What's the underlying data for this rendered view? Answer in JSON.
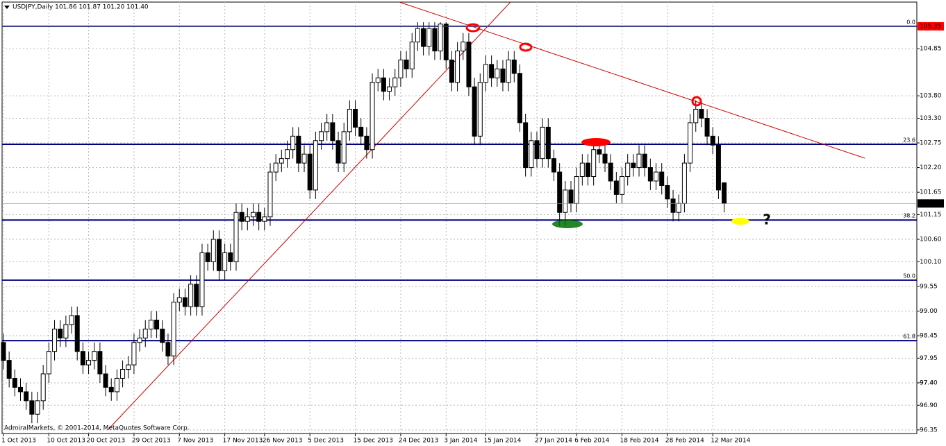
{
  "chart_data": {
    "type": "candlestick",
    "title": "USDJPY,Daily  101.86 101.87 101.20 101.40",
    "footer": "AdmiralMarkets, © 2001-2014, MetaQuotes Software Corp.",
    "annotations": [
      "?"
    ],
    "categories": [
      "1 Oct 2013",
      null,
      null,
      null,
      null,
      null,
      null,
      null,
      "10 Oct 2013",
      null,
      null,
      null,
      null,
      null,
      null,
      "20 Oct 2013",
      null,
      null,
      null,
      null,
      null,
      null,
      null,
      "29 Oct 2013",
      null,
      null,
      null,
      null,
      null,
      null,
      null,
      "7 Nov 2013",
      null,
      null,
      null,
      null,
      null,
      null,
      null,
      "17 Nov 2013",
      null,
      null,
      null,
      null,
      null,
      null,
      "26 Nov 2013",
      null,
      null,
      null,
      null,
      null,
      null,
      null,
      "5 Dec 2013",
      null,
      null,
      null,
      null,
      null,
      null,
      null,
      "15 Dec 2013",
      null,
      null,
      null,
      null,
      null,
      null,
      null,
      "24 Dec 2013",
      null,
      null,
      null,
      null,
      null,
      null,
      null,
      "3 Jan 2014",
      null,
      null,
      null,
      null,
      null,
      null,
      "15 Jan 2014",
      null,
      null,
      null,
      null,
      null,
      null,
      null,
      null,
      "27 Jan 2014",
      null,
      null,
      null,
      null,
      null,
      null,
      "6 Feb 2014",
      null,
      null,
      null,
      null,
      null,
      null,
      null,
      "18 Feb 2014",
      null,
      null,
      null,
      null,
      null,
      null,
      null,
      "28 Feb 2014",
      null,
      null,
      null,
      null,
      null,
      null,
      null,
      "12 Mar 2014",
      null,
      null
    ],
    "open": [
      98.3,
      97.9,
      97.5,
      97.3,
      97.2,
      97.0,
      96.7,
      97.0,
      97.6,
      98.1,
      98.6,
      98.4,
      98.7,
      98.9,
      98.1,
      97.8,
      97.9,
      98.1,
      97.6,
      97.3,
      97.2,
      97.5,
      97.7,
      97.8,
      98.3,
      98.4,
      98.6,
      98.8,
      98.6,
      98.3,
      98.0,
      99.2,
      99.3,
      99.1,
      99.6,
      99.1,
      100.3,
      100.1,
      100.6,
      99.9,
      100.3,
      100.1,
      101.2,
      101.0,
      101.1,
      101.2,
      101.0,
      101.1,
      102.1,
      102.3,
      102.4,
      102.6,
      102.9,
      102.3,
      102.5,
      101.7,
      102.8,
      103.0,
      103.2,
      102.8,
      102.3,
      103.0,
      103.5,
      103.1,
      102.9,
      102.6,
      104.1,
      104.2,
      103.9,
      104.0,
      104.2,
      104.6,
      104.4,
      105.0,
      105.3,
      104.9,
      105.3,
      104.8,
      105.4,
      104.6,
      104.1,
      104.8,
      105.0,
      104.0,
      102.9,
      104.1,
      104.5,
      104.2,
      104.4,
      104.1,
      104.6,
      104.3,
      103.2,
      102.2,
      102.8,
      102.4,
      103.1,
      102.4,
      102.1,
      101.2,
      101.7,
      101.4,
      102.0,
      102.3,
      102.0,
      102.6,
      102.5,
      102.3,
      101.9,
      101.6,
      102.0,
      102.3,
      102.2,
      102.5,
      102.2,
      101.9,
      102.1,
      101.8,
      101.5,
      101.2,
      101.4,
      102.3,
      103.2,
      103.5,
      103.3,
      102.9,
      102.7,
      101.86
    ],
    "high": [
      98.5,
      98.1,
      97.7,
      97.5,
      97.4,
      97.2,
      97.2,
      97.8,
      98.3,
      98.8,
      98.8,
      98.9,
      99.1,
      99.1,
      98.3,
      98.1,
      98.3,
      98.3,
      97.8,
      97.5,
      97.7,
      97.9,
      98.0,
      98.5,
      98.6,
      98.8,
      99.0,
      99.0,
      98.8,
      98.5,
      99.4,
      99.5,
      99.5,
      99.8,
      99.8,
      100.5,
      100.5,
      100.8,
      100.8,
      100.5,
      100.5,
      101.4,
      101.4,
      101.3,
      101.4,
      101.4,
      101.3,
      102.3,
      102.5,
      102.6,
      102.8,
      103.1,
      103.1,
      102.7,
      102.7,
      103.0,
      103.2,
      103.4,
      103.4,
      103.0,
      103.2,
      103.7,
      103.7,
      103.3,
      103.1,
      104.3,
      104.4,
      104.4,
      104.2,
      104.4,
      104.8,
      104.8,
      105.2,
      105.44,
      105.44,
      105.44,
      105.44,
      105.44,
      105.44,
      104.8,
      105.0,
      105.2,
      105.2,
      104.2,
      104.3,
      104.7,
      104.7,
      104.6,
      104.6,
      104.8,
      104.8,
      104.5,
      103.4,
      103.0,
      103.0,
      103.3,
      103.3,
      102.6,
      102.3,
      101.9,
      101.9,
      102.2,
      102.5,
      102.5,
      102.8,
      102.8,
      102.7,
      102.5,
      102.1,
      102.2,
      102.5,
      102.5,
      102.7,
      102.7,
      102.4,
      102.3,
      102.3,
      102.0,
      101.7,
      101.6,
      102.5,
      103.4,
      103.7,
      103.7,
      103.5,
      103.1,
      102.9,
      101.87
    ],
    "low": [
      97.7,
      97.3,
      97.1,
      97.0,
      96.8,
      96.5,
      96.5,
      96.8,
      97.4,
      97.9,
      98.2,
      98.2,
      98.5,
      97.9,
      97.6,
      97.6,
      97.7,
      97.4,
      97.1,
      97.0,
      97.0,
      97.3,
      97.5,
      97.6,
      98.1,
      98.2,
      98.4,
      98.4,
      98.1,
      97.8,
      97.8,
      99.0,
      98.9,
      98.9,
      98.9,
      98.9,
      99.9,
      99.9,
      99.7,
      99.7,
      99.9,
      99.9,
      100.8,
      100.8,
      100.9,
      100.8,
      100.8,
      100.9,
      101.9,
      102.1,
      102.2,
      102.4,
      102.1,
      102.1,
      101.5,
      101.5,
      102.6,
      102.8,
      102.6,
      102.1,
      102.1,
      102.8,
      102.9,
      102.7,
      102.4,
      102.4,
      103.9,
      103.7,
      103.7,
      103.8,
      104.0,
      104.2,
      104.2,
      104.8,
      104.7,
      104.7,
      104.6,
      104.6,
      104.4,
      103.9,
      103.9,
      104.6,
      103.8,
      102.7,
      102.7,
      103.9,
      104.0,
      104.0,
      103.9,
      103.9,
      104.1,
      103.0,
      102.0,
      102.0,
      102.2,
      102.2,
      102.2,
      101.9,
      100.9,
      100.9,
      101.2,
      101.2,
      101.8,
      101.8,
      101.8,
      102.3,
      102.1,
      101.7,
      101.4,
      101.4,
      101.8,
      102.0,
      102.0,
      102.0,
      101.7,
      101.7,
      101.6,
      101.3,
      101.0,
      101.0,
      101.2,
      102.1,
      103.0,
      103.1,
      102.7,
      102.5,
      101.5,
      101.2
    ],
    "close": [
      97.9,
      97.5,
      97.3,
      97.2,
      97.0,
      96.7,
      97.0,
      97.6,
      98.1,
      98.6,
      98.4,
      98.7,
      98.9,
      98.1,
      97.8,
      97.9,
      98.1,
      97.6,
      97.3,
      97.2,
      97.5,
      97.7,
      97.8,
      98.3,
      98.4,
      98.6,
      98.8,
      98.6,
      98.3,
      98.0,
      99.2,
      99.3,
      99.1,
      99.6,
      99.1,
      100.3,
      100.1,
      100.6,
      99.9,
      100.3,
      100.1,
      101.2,
      101.0,
      101.1,
      101.2,
      101.0,
      101.1,
      102.1,
      102.3,
      102.4,
      102.6,
      102.9,
      102.3,
      102.5,
      101.7,
      102.8,
      103.0,
      103.2,
      102.8,
      102.3,
      103.0,
      103.5,
      103.1,
      102.9,
      102.6,
      104.1,
      104.2,
      103.9,
      104.0,
      104.2,
      104.6,
      104.4,
      105.0,
      105.3,
      104.9,
      105.3,
      104.8,
      105.4,
      104.6,
      104.1,
      104.8,
      105.0,
      104.0,
      102.9,
      104.1,
      104.5,
      104.2,
      104.4,
      104.1,
      104.6,
      104.3,
      103.2,
      102.2,
      102.8,
      102.4,
      103.1,
      102.4,
      102.1,
      101.2,
      101.7,
      101.4,
      102.0,
      102.3,
      102.0,
      102.6,
      102.5,
      102.3,
      101.9,
      101.6,
      102.0,
      102.3,
      102.2,
      102.5,
      102.2,
      101.9,
      102.1,
      101.8,
      101.5,
      101.2,
      101.4,
      102.3,
      103.2,
      103.5,
      103.3,
      102.9,
      102.7,
      101.7,
      101.4
    ],
    "ylim": [
      96.27,
      105.89
    ],
    "yticks": [
      96.35,
      {
        "value": 96.9,
        "label": "96.90"
      },
      97.4,
      {
        "value": 97.4,
        "label": "97.40"
      },
      97.95,
      98.45,
      {
        "value": 99.0,
        "label": "99.00"
      },
      99.55,
      {
        "value": 100.1,
        "label": "100.10"
      },
      {
        "value": 100.6,
        "label": "100.60"
      },
      101.15,
      101.65,
      {
        "value": 102.2,
        "label": "102.20"
      },
      102.75,
      {
        "value": 103.3,
        "label": "103.30"
      },
      {
        "value": 103.8,
        "label": "103.80"
      },
      104.85,
      105.35
    ],
    "fib_levels": [
      {
        "value": 105.35,
        "label": "0.0"
      },
      {
        "value": 102.72,
        "label": "23.6"
      },
      {
        "value": 101.03,
        "label": "38.2"
      },
      {
        "value": 99.69,
        "label": "50.0"
      },
      {
        "value": 98.34,
        "label": "61.8"
      }
    ],
    "fib_color": "#000080",
    "price_tags": [
      {
        "value": 105.35,
        "label": "105.35",
        "color": "#ff0000"
      },
      {
        "value": 101.4,
        "label": "101.40",
        "color": "#000000"
      }
    ],
    "grid": true
  }
}
